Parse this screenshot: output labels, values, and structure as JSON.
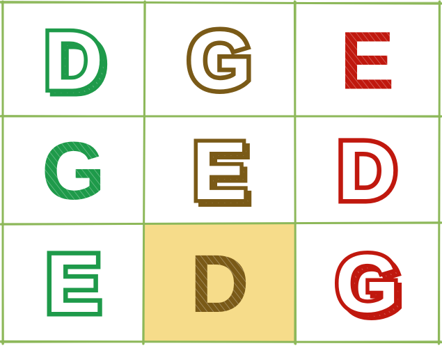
{
  "board": {
    "grid_color": "#8db85a",
    "highlight_color": "#f6dc8a",
    "cells": [
      {
        "letter": "D",
        "color": "#1e9a4a",
        "style": "outline-shadow",
        "selected": false
      },
      {
        "letter": "G",
        "color": "#7a5a17",
        "style": "outline",
        "selected": false
      },
      {
        "letter": "E",
        "color": "#c0180e",
        "style": "solid",
        "selected": false
      },
      {
        "letter": "G",
        "color": "#1e9a4a",
        "style": "solid",
        "selected": false
      },
      {
        "letter": "E",
        "color": "#7a5a17",
        "style": "outline-shadow",
        "selected": false
      },
      {
        "letter": "D",
        "color": "#c0180e",
        "style": "outline",
        "selected": false
      },
      {
        "letter": "E",
        "color": "#1e9a4a",
        "style": "outline",
        "selected": false
      },
      {
        "letter": "D",
        "color": "#7a5a17",
        "style": "solid",
        "selected": true
      },
      {
        "letter": "G",
        "color": "#c0180e",
        "style": "outline-shadow",
        "selected": false
      }
    ]
  }
}
